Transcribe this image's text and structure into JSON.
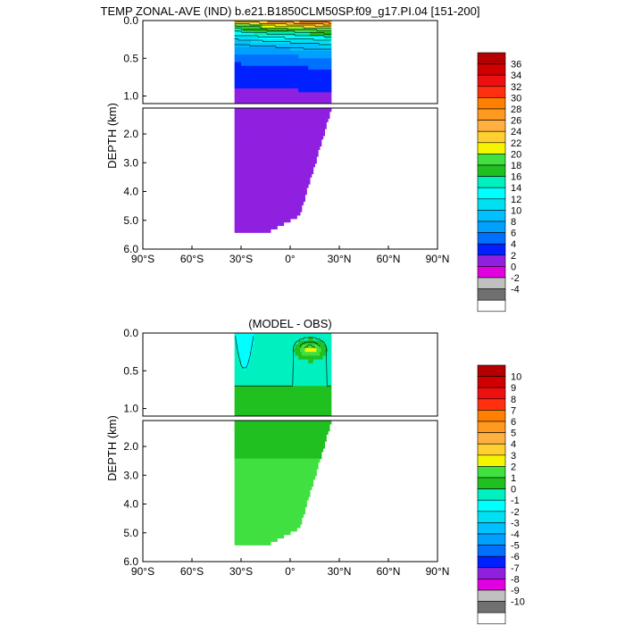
{
  "chart_data": [
    {
      "type": "heatmap",
      "title": "TEMP ZONAL-AVE (IND) b.e21.B1850CLM50SP.f09_g17.PI.04 [151-200]",
      "ylabel": "DEPTH (km)",
      "x_ticks": [
        "90°S",
        "60°S",
        "30°S",
        "0°",
        "30°N",
        "60°N",
        "90°N"
      ],
      "y_ticks_upper": [
        "0.0",
        "0.5",
        "1.0"
      ],
      "y_ticks_lower": [
        "2.0",
        "3.0",
        "4.0",
        "5.0",
        "6.0"
      ],
      "xlim": [
        -90,
        90
      ],
      "ylim_km": [
        0,
        6
      ],
      "colorbar": {
        "levels": [
          "36",
          "34",
          "32",
          "30",
          "28",
          "26",
          "24",
          "22",
          "20",
          "18",
          "16",
          "14",
          "12",
          "10",
          "8",
          "6",
          "4",
          "2",
          "0",
          "-2",
          "-4"
        ],
        "colors": [
          "#b40000",
          "#d00000",
          "#ee1010",
          "#ff3010",
          "#ff8000",
          "#ff9a20",
          "#ffb040",
          "#ffd030",
          "#f5f500",
          "#40e040",
          "#20c020",
          "#00f0c0",
          "#00ffff",
          "#00e0f0",
          "#00c0ff",
          "#00a0ff",
          "#0070ff",
          "#0020ff",
          "#9020e0",
          "#e000e0",
          "#c0c0c0",
          "#707070",
          "#ffffff"
        ]
      },
      "field": {
        "ocean_lat_range": [
          -34,
          25
        ],
        "surface_temp_range": [
          22,
          28
        ],
        "deep_temp_range": [
          0,
          2
        ]
      }
    },
    {
      "type": "heatmap",
      "title": "(MODEL - OBS)",
      "ylabel": "DEPTH (km)",
      "x_ticks": [
        "90°S",
        "60°S",
        "30°S",
        "0°",
        "30°N",
        "60°N",
        "90°N"
      ],
      "y_ticks_upper": [
        "0.0",
        "0.5",
        "1.0"
      ],
      "y_ticks_lower": [
        "2.0",
        "3.0",
        "4.0",
        "5.0",
        "6.0"
      ],
      "xlim": [
        -90,
        90
      ],
      "ylim_km": [
        0,
        6
      ],
      "colorbar": {
        "levels": [
          "10",
          "9",
          "8",
          "7",
          "6",
          "5",
          "4",
          "3",
          "2",
          "1",
          "0",
          "-1",
          "-2",
          "-3",
          "-4",
          "-5",
          "-6",
          "-7",
          "-8",
          "-9",
          "-10"
        ],
        "colors": [
          "#b40000",
          "#d00000",
          "#ee1010",
          "#ff3010",
          "#ff8000",
          "#ff9a20",
          "#ffb040",
          "#ffd030",
          "#f5f500",
          "#40e040",
          "#20c020",
          "#00f0c0",
          "#00ffff",
          "#00e0f0",
          "#00c0ff",
          "#00a0ff",
          "#0070ff",
          "#0020ff",
          "#9020e0",
          "#e000e0",
          "#c0c0c0",
          "#707070",
          "#ffffff"
        ]
      },
      "field": {
        "ocean_lat_range": [
          -34,
          25
        ],
        "anomaly_range_upper": [
          -2,
          3
        ],
        "anomaly_range_deep": [
          0,
          2
        ]
      }
    }
  ]
}
